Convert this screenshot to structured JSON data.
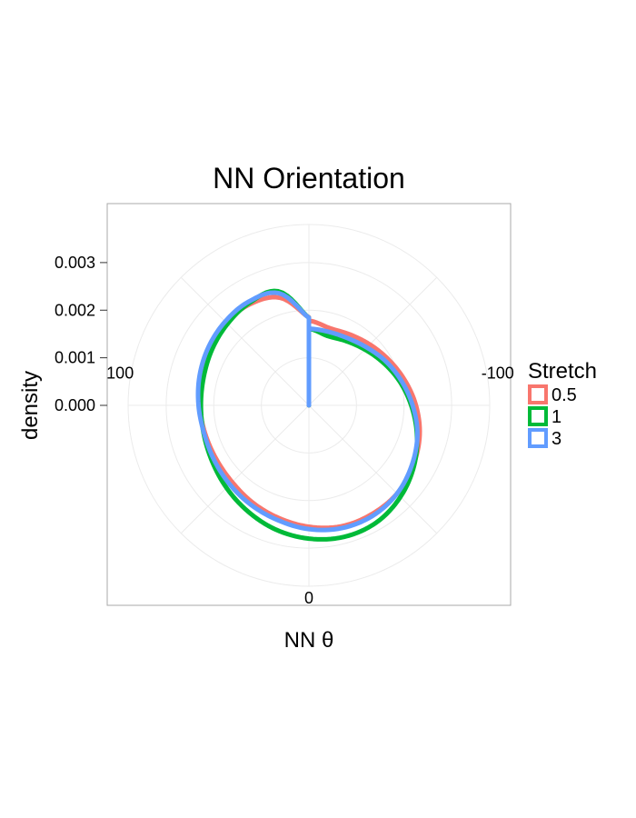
{
  "chart_data": {
    "type": "line",
    "coord": "polar",
    "title": "NN Orientation",
    "xlabel": "NN θ",
    "ylabel": "density",
    "theta_direction": "clockwise-from-bottom",
    "theta_ticks": [
      {
        "value": 0,
        "label": "0"
      },
      {
        "value": 100,
        "label": "100"
      },
      {
        "value": -100,
        "label": "-100"
      }
    ],
    "r_ticks": [
      {
        "value": 0.0,
        "label": "0.000"
      },
      {
        "value": 0.001,
        "label": "0.001"
      },
      {
        "value": 0.002,
        "label": "0.002"
      },
      {
        "value": 0.003,
        "label": "0.003"
      }
    ],
    "r_lim": [
      0,
      0.0038
    ],
    "grid": true,
    "legend": {
      "title": "Stretch",
      "position": "right"
    },
    "theta": [
      -180,
      -165,
      -150,
      -135,
      -120,
      -105,
      -90,
      -75,
      -60,
      -45,
      -30,
      -15,
      0,
      15,
      30,
      45,
      60,
      75,
      90,
      105,
      120,
      135,
      150,
      165,
      180
    ],
    "series": [
      {
        "name": "0.5",
        "color": "#F8766D",
        "values": [
          0.00178,
          0.00168,
          0.00172,
          0.00181,
          0.00193,
          0.00208,
          0.00225,
          0.00241,
          0.00253,
          0.00262,
          0.00264,
          0.00263,
          0.00255,
          0.00245,
          0.00236,
          0.00228,
          0.00225,
          0.00226,
          0.0023,
          0.00237,
          0.00243,
          0.00246,
          0.00246,
          0.00234,
          0.00185
        ]
      },
      {
        "name": "1",
        "color": "#00BA38",
        "values": [
          0.00161,
          0.00151,
          0.00156,
          0.00166,
          0.0018,
          0.00197,
          0.00215,
          0.00235,
          0.00255,
          0.00272,
          0.00284,
          0.00286,
          0.0028,
          0.0027,
          0.00257,
          0.00245,
          0.00235,
          0.00229,
          0.00227,
          0.00229,
          0.00235,
          0.00242,
          0.00249,
          0.00248,
          0.00184
        ]
      },
      {
        "name": "3",
        "color": "#619CFF",
        "values": [
          0.00161,
          0.0016,
          0.00163,
          0.00172,
          0.00186,
          0.00201,
          0.00218,
          0.00236,
          0.0025,
          0.00262,
          0.00268,
          0.00267,
          0.0026,
          0.0025,
          0.00242,
          0.00235,
          0.0023,
          0.00228,
          0.00232,
          0.00238,
          0.00244,
          0.00249,
          0.00252,
          0.00244,
          0.00184
        ]
      }
    ]
  }
}
